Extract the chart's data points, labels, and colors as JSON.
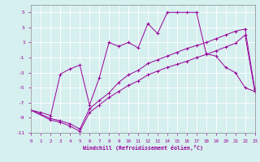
{
  "xlabel": "Windchill (Refroidissement éolien,°C)",
  "bg_color": "#d6efef",
  "line_color": "#990099",
  "xlim": [
    0,
    23
  ],
  "ylim": [
    -11,
    6
  ],
  "xticks": [
    0,
    1,
    2,
    3,
    4,
    5,
    6,
    7,
    8,
    9,
    10,
    11,
    12,
    13,
    14,
    15,
    16,
    17,
    18,
    19,
    20,
    21,
    22,
    23
  ],
  "yticks": [
    -11,
    -9,
    -7,
    -5,
    -3,
    -1,
    1,
    3,
    5
  ],
  "line1_x": [
    0,
    1,
    2,
    3,
    4,
    5,
    6,
    7,
    8,
    9,
    10,
    11,
    12,
    13,
    14,
    15,
    16,
    17,
    18,
    19,
    20,
    21,
    22,
    23
  ],
  "line1_y": [
    -8,
    -8.3,
    -8.7,
    -3.2,
    -2.5,
    -2.0,
    -7.3,
    -3.7,
    1.0,
    0.5,
    1.0,
    0.3,
    3.5,
    2.2,
    5.0,
    5.0,
    5.0,
    5.0,
    -0.5,
    -0.8,
    -2.3,
    -3.0,
    -5.0,
    -5.5
  ],
  "line2_x": [
    0,
    2,
    3,
    4,
    5,
    6,
    7,
    8,
    9,
    10,
    11,
    12,
    13,
    14,
    15,
    16,
    17,
    18,
    19,
    20,
    21,
    22,
    23
  ],
  "line2_y": [
    -8,
    -9.3,
    -9.6,
    -10.1,
    -10.8,
    -8.3,
    -7.3,
    -6.3,
    -5.5,
    -4.7,
    -4.1,
    -3.3,
    -2.8,
    -2.3,
    -1.9,
    -1.5,
    -1.0,
    -0.6,
    -0.1,
    0.4,
    0.9,
    2.0,
    -5.5
  ],
  "line3_x": [
    0,
    2,
    3,
    4,
    5,
    6,
    7,
    8,
    9,
    10,
    11,
    12,
    13,
    14,
    15,
    16,
    17,
    18,
    19,
    20,
    21,
    22,
    23
  ],
  "line3_y": [
    -8,
    -9.1,
    -9.4,
    -9.8,
    -10.5,
    -7.8,
    -6.7,
    -5.7,
    -4.3,
    -3.3,
    -2.7,
    -1.8,
    -1.3,
    -0.8,
    -0.3,
    0.2,
    0.6,
    1.0,
    1.5,
    2.0,
    2.5,
    2.8,
    -5.2
  ]
}
